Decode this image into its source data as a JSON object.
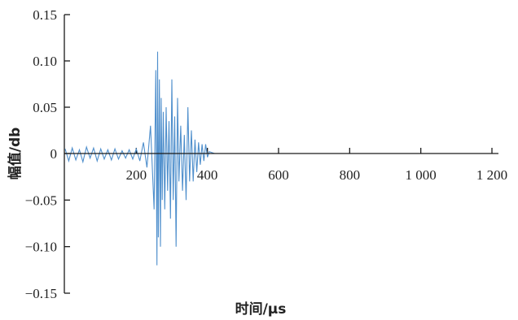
{
  "chart_data": {
    "type": "line",
    "xlabel": "时间/µs",
    "ylabel": "幅值/db",
    "xlim": [
      0,
      1230
    ],
    "ylim": [
      -0.15,
      0.15
    ],
    "x_ticks": [
      200,
      400,
      600,
      800,
      1000,
      1200
    ],
    "x_tick_labels": [
      "200",
      "400",
      "600",
      "800",
      "1 000",
      "1 200"
    ],
    "y_ticks": [
      0.15,
      0.1,
      0.05,
      0,
      -0.05,
      -0.1,
      -0.15
    ],
    "y_tick_labels": [
      "0.15",
      "0.10",
      "0.05",
      "0",
      "−0.05",
      "−0.10",
      "−0.15"
    ],
    "grid": false,
    "series": [
      {
        "color": "#4f8fcc",
        "x": [
          0,
          10,
          20,
          30,
          40,
          50,
          60,
          70,
          80,
          90,
          100,
          110,
          120,
          130,
          140,
          150,
          160,
          170,
          180,
          190,
          200,
          210,
          220,
          230,
          240,
          250,
          255,
          258,
          260,
          262,
          265,
          268,
          270,
          273,
          276,
          280,
          284,
          288,
          292,
          296,
          300,
          304,
          308,
          312,
          316,
          320,
          325,
          330,
          335,
          340,
          345,
          350,
          355,
          360,
          365,
          370,
          375,
          380,
          385,
          390,
          395,
          400,
          405,
          420,
          500,
          600,
          700,
          800,
          900,
          1000,
          1100,
          1200
        ],
        "y": [
          0.005,
          -0.008,
          0.006,
          -0.007,
          0.004,
          -0.009,
          0.007,
          -0.005,
          0.006,
          -0.008,
          0.005,
          -0.006,
          0.004,
          -0.007,
          0.005,
          -0.006,
          0.003,
          -0.005,
          0.004,
          -0.006,
          0.005,
          -0.008,
          0.012,
          -0.015,
          0.03,
          -0.06,
          0.09,
          -0.12,
          0.11,
          -0.09,
          0.08,
          -0.1,
          0.06,
          -0.05,
          0.045,
          -0.06,
          0.05,
          -0.04,
          0.035,
          -0.07,
          0.08,
          -0.05,
          0.04,
          -0.1,
          0.06,
          -0.03,
          0.03,
          -0.04,
          0.02,
          -0.05,
          0.05,
          -0.03,
          0.025,
          -0.03,
          0.015,
          -0.02,
          0.012,
          -0.012,
          0.01,
          -0.008,
          0.01,
          -0.004,
          0.002,
          0,
          0,
          0,
          0,
          0,
          0,
          0,
          0,
          0
        ]
      }
    ]
  }
}
